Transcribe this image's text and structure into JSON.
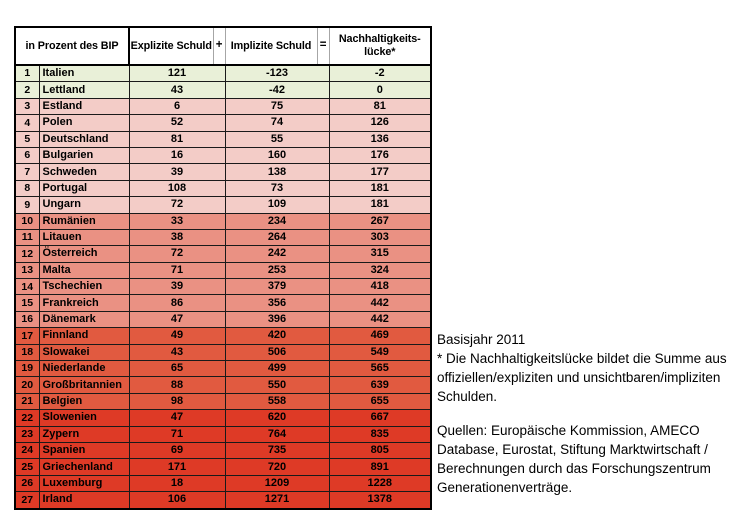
{
  "chart_data": {
    "type": "table",
    "unit_header": "in Prozent des BIP",
    "col_explicit": "Explizite Schuld",
    "op_plus": "+",
    "col_implicit": "Implizite Schuld",
    "op_equals": "=",
    "col_gap_line1": "Nachhaltigkeits-",
    "col_gap_line2": "lücke*",
    "rows": [
      {
        "rank": 1,
        "country": "Italien",
        "explizit": 121,
        "implizit": -123,
        "luecke": -2,
        "band": "green"
      },
      {
        "rank": 2,
        "country": "Lettland",
        "explizit": 43,
        "implizit": -42,
        "luecke": 0,
        "band": "green"
      },
      {
        "rank": 3,
        "country": "Estland",
        "explizit": 6,
        "implizit": 75,
        "luecke": 81,
        "band": "p1"
      },
      {
        "rank": 4,
        "country": "Polen",
        "explizit": 52,
        "implizit": 74,
        "luecke": 126,
        "band": "p1"
      },
      {
        "rank": 5,
        "country": "Deutschland",
        "explizit": 81,
        "implizit": 55,
        "luecke": 136,
        "band": "p1"
      },
      {
        "rank": 6,
        "country": "Bulgarien",
        "explizit": 16,
        "implizit": 160,
        "luecke": 176,
        "band": "p1"
      },
      {
        "rank": 7,
        "country": "Schweden",
        "explizit": 39,
        "implizit": 138,
        "luecke": 177,
        "band": "p1"
      },
      {
        "rank": 8,
        "country": "Portugal",
        "explizit": 108,
        "implizit": 73,
        "luecke": 181,
        "band": "p1"
      },
      {
        "rank": 9,
        "country": "Ungarn",
        "explizit": 72,
        "implizit": 109,
        "luecke": 181,
        "band": "p1"
      },
      {
        "rank": 10,
        "country": "Rumänien",
        "explizit": 33,
        "implizit": 234,
        "luecke": 267,
        "band": "p2"
      },
      {
        "rank": 11,
        "country": "Litauen",
        "explizit": 38,
        "implizit": 264,
        "luecke": 303,
        "band": "p2"
      },
      {
        "rank": 12,
        "country": "Österreich",
        "explizit": 72,
        "implizit": 242,
        "luecke": 315,
        "band": "p2"
      },
      {
        "rank": 13,
        "country": "Malta",
        "explizit": 71,
        "implizit": 253,
        "luecke": 324,
        "band": "p2"
      },
      {
        "rank": 14,
        "country": "Tschechien",
        "explizit": 39,
        "implizit": 379,
        "luecke": 418,
        "band": "p2"
      },
      {
        "rank": 15,
        "country": "Frankreich",
        "explizit": 86,
        "implizit": 356,
        "luecke": 442,
        "band": "p2"
      },
      {
        "rank": 16,
        "country": "Dänemark",
        "explizit": 47,
        "implizit": 396,
        "luecke": 442,
        "band": "p2"
      },
      {
        "rank": 17,
        "country": "Finnland",
        "explizit": 49,
        "implizit": 420,
        "luecke": 469,
        "band": "p3"
      },
      {
        "rank": 18,
        "country": "Slowakei",
        "explizit": 43,
        "implizit": 506,
        "luecke": 549,
        "band": "p3"
      },
      {
        "rank": 19,
        "country": "Niederlande",
        "explizit": 65,
        "implizit": 499,
        "luecke": 565,
        "band": "p3"
      },
      {
        "rank": 20,
        "country": "Großbritannien",
        "explizit": 88,
        "implizit": 550,
        "luecke": 639,
        "band": "p3"
      },
      {
        "rank": 21,
        "country": "Belgien",
        "explizit": 98,
        "implizit": 558,
        "luecke": 655,
        "band": "p3"
      },
      {
        "rank": 22,
        "country": "Slowenien",
        "explizit": 47,
        "implizit": 620,
        "luecke": 667,
        "band": "p4"
      },
      {
        "rank": 23,
        "country": "Zypern",
        "explizit": 71,
        "implizit": 764,
        "luecke": 835,
        "band": "p4"
      },
      {
        "rank": 24,
        "country": "Spanien",
        "explizit": 69,
        "implizit": 735,
        "luecke": 805,
        "band": "p4"
      },
      {
        "rank": 25,
        "country": "Griechenland",
        "explizit": 171,
        "implizit": 720,
        "luecke": 891,
        "band": "p4"
      },
      {
        "rank": 26,
        "country": "Luxemburg",
        "explizit": 18,
        "implizit": 1209,
        "luecke": 1228,
        "band": "p4"
      },
      {
        "rank": 27,
        "country": "Irland",
        "explizit": 106,
        "implizit": 1271,
        "luecke": 1378,
        "band": "p4"
      }
    ]
  },
  "colors": {
    "green": "#E9F0D8",
    "p1": "#F3CCC7",
    "p2": "#EA9183",
    "p3": "#E15A40",
    "p4": "#DE3A26"
  },
  "notes": {
    "basisjahr": "Basisjahr 2011",
    "definition": "* Die Nachhaltigkeitslücke bildet die Summe aus offiziellen/expliziten und unsichtbaren/impliziten Schulden.",
    "quellen": "Quellen: Europäische Kommission, AMECO Database, Eurostat, Stiftung Marktwirtschaft / Berechnungen durch das Forschungszentrum Generationenverträge."
  }
}
